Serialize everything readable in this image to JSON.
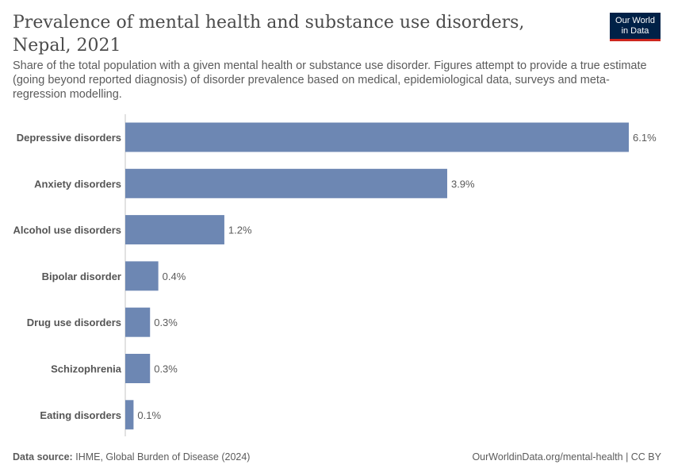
{
  "header": {
    "title": "Prevalence of mental health and substance use disorders, Nepal, 2021",
    "subtitle": "Share of the total population with a given mental health or substance use disorder. Figures attempt to provide a true estimate (going beyond reported diagnosis) of disorder prevalence based on medical, epidemiological data, surveys and meta-regression modelling."
  },
  "logo": {
    "line1": "Our World",
    "line2": "in Data",
    "bg": "#002147",
    "accent": "#ce261e"
  },
  "footer": {
    "source_label": "Data source:",
    "source_text": "IHME, Global Burden of Disease (2024)",
    "right_text": "OurWorldinData.org/mental-health | CC BY"
  },
  "chart_data": {
    "type": "bar",
    "orientation": "horizontal",
    "categories": [
      "Depressive disorders",
      "Anxiety disorders",
      "Alcohol use disorders",
      "Bipolar disorder",
      "Drug use disorders",
      "Schizophrenia",
      "Eating disorders"
    ],
    "values": [
      6.1,
      3.9,
      1.2,
      0.4,
      0.3,
      0.3,
      0.1
    ],
    "labels": [
      "6.1%",
      "3.9%",
      "1.2%",
      "0.4%",
      "0.3%",
      "0.3%",
      "0.1%"
    ],
    "unit": "%",
    "xlim": [
      0,
      6.1
    ],
    "grid": false,
    "bar_color": "#6d87b3"
  }
}
